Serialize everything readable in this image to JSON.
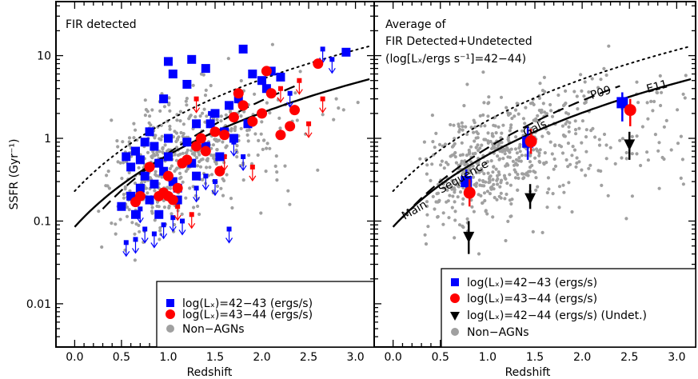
{
  "chart_data": [
    {
      "type": "scatter",
      "panel": "left",
      "annotations": [
        "FIR detected"
      ],
      "xlabel": "Redshift",
      "ylabel": "SSFR (Gyr⁻¹)",
      "xlim": [
        -0.2,
        3.2
      ],
      "ylim": [
        0.003,
        45
      ],
      "yscale": "log",
      "x_ticks": [
        "0.0",
        "0.5",
        "1.0",
        "1.5",
        "2.0",
        "2.5",
        "3.0"
      ],
      "y_ticks": [
        "0.01",
        "0.1",
        "1",
        "10"
      ],
      "legend": {
        "placement": "bottom-right",
        "entries": [
          {
            "label": "log(Lₓ)=42−43 (ergs/s)",
            "marker": "square",
            "color": "#0000ff"
          },
          {
            "label": "log(Lₓ)=43−44 (ergs/s)",
            "marker": "circle",
            "color": "#ff0000"
          },
          {
            "label": "Non−AGNs",
            "marker": "circle",
            "color": "#a0a0a0"
          }
        ]
      },
      "series": [
        {
          "name": "log(Lₓ)=42−43 (ergs/s)",
          "marker": "square",
          "color": "#0000ff",
          "points": [
            [
              0.55,
              0.6
            ],
            [
              0.6,
              0.45
            ],
            [
              0.65,
              0.7
            ],
            [
              0.7,
              0.55
            ],
            [
              0.75,
              0.9
            ],
            [
              0.8,
              1.2
            ],
            [
              0.85,
              0.8
            ],
            [
              0.9,
              0.5
            ],
            [
              0.95,
              0.4
            ],
            [
              1.0,
              0.6
            ],
            [
              1.05,
              0.3
            ],
            [
              1.1,
              0.25
            ],
            [
              0.5,
              0.15
            ],
            [
              0.7,
              0.25
            ],
            [
              0.9,
              0.12
            ],
            [
              1.0,
              1.0
            ],
            [
              1.2,
              0.9
            ],
            [
              1.25,
              0.5
            ],
            [
              1.3,
              1.5
            ],
            [
              1.4,
              0.8
            ],
            [
              1.45,
              1.5
            ],
            [
              1.5,
              2.0
            ],
            [
              1.6,
              1.2
            ],
            [
              1.65,
              2.5
            ],
            [
              1.7,
              1.0
            ],
            [
              1.75,
              3.0
            ],
            [
              1.85,
              1.5
            ],
            [
              1.9,
              6.0
            ],
            [
              2.0,
              5.0
            ],
            [
              2.05,
              4.0
            ],
            [
              2.1,
              6.5
            ],
            [
              2.2,
              5.5
            ],
            [
              1.8,
              12.0
            ],
            [
              2.9,
              11.0
            ],
            [
              1.0,
              8.5
            ],
            [
              1.05,
              6.0
            ],
            [
              1.2,
              4.5
            ],
            [
              0.95,
              3.0
            ],
            [
              1.25,
              9.0
            ],
            [
              1.4,
              7.0
            ],
            [
              0.8,
              0.18
            ],
            [
              1.1,
              0.18
            ],
            [
              0.6,
              0.2
            ],
            [
              0.75,
              0.35
            ],
            [
              1.55,
              0.6
            ],
            [
              1.3,
              0.35
            ],
            [
              0.65,
              0.12
            ],
            [
              0.85,
              0.28
            ]
          ]
        },
        {
          "name": "log(Lₓ)=43−44 (ergs/s)",
          "marker": "circle",
          "color": "#ff0000",
          "points": [
            [
              0.7,
              0.2
            ],
            [
              0.8,
              0.45
            ],
            [
              0.9,
              0.2
            ],
            [
              0.95,
              0.22
            ],
            [
              1.0,
              0.35
            ],
            [
              1.05,
              0.18
            ],
            [
              1.1,
              0.25
            ],
            [
              1.15,
              0.5
            ],
            [
              1.2,
              0.55
            ],
            [
              1.3,
              0.8
            ],
            [
              1.35,
              1.0
            ],
            [
              1.4,
              0.7
            ],
            [
              1.5,
              1.2
            ],
            [
              1.55,
              0.4
            ],
            [
              1.6,
              1.1
            ],
            [
              1.7,
              1.8
            ],
            [
              1.75,
              3.5
            ],
            [
              1.8,
              2.5
            ],
            [
              1.9,
              1.6
            ],
            [
              2.0,
              2.0
            ],
            [
              2.05,
              6.5
            ],
            [
              2.1,
              3.5
            ],
            [
              2.2,
              1.1
            ],
            [
              2.3,
              1.4
            ],
            [
              2.35,
              2.2
            ],
            [
              2.6,
              8.0
            ],
            [
              0.65,
              0.17
            ],
            [
              1.0,
              0.2
            ]
          ]
        },
        {
          "name": "Upper limits (FIR undetected)",
          "marker": "down-arrow",
          "points": [
            [
              0.55,
              0.055,
              "b"
            ],
            [
              0.65,
              0.06,
              "b"
            ],
            [
              0.75,
              0.08,
              "b"
            ],
            [
              0.85,
              0.07,
              "b"
            ],
            [
              0.95,
              0.09,
              "b"
            ],
            [
              1.05,
              0.11,
              "b"
            ],
            [
              1.15,
              0.1,
              "b"
            ],
            [
              0.7,
              0.14,
              "b"
            ],
            [
              1.3,
              0.25,
              "b"
            ],
            [
              1.4,
              0.35,
              "b"
            ],
            [
              1.5,
              0.3,
              "b"
            ],
            [
              1.65,
              0.08,
              "b"
            ],
            [
              1.7,
              0.9,
              "b"
            ],
            [
              1.45,
              2.0,
              "b"
            ],
            [
              1.8,
              0.6,
              "b"
            ],
            [
              2.3,
              3.5,
              "b"
            ],
            [
              2.65,
              12.0,
              "b"
            ],
            [
              2.75,
              9.0,
              "b"
            ],
            [
              1.1,
              0.15,
              "r"
            ],
            [
              1.25,
              0.12,
              "r"
            ],
            [
              1.6,
              0.6,
              "r"
            ],
            [
              1.9,
              0.45,
              "r"
            ],
            [
              2.2,
              4.0,
              "r"
            ],
            [
              2.5,
              1.5,
              "r"
            ],
            [
              2.65,
              3.0,
              "r"
            ],
            [
              2.4,
              5.0,
              "r"
            ],
            [
              1.3,
              3.0,
              "r"
            ]
          ]
        }
      ],
      "curves": [
        {
          "label": "",
          "style": "dotted",
          "x": [
            0.0,
            3.15
          ],
          "y": [
            0.23,
            13.0
          ]
        },
        {
          "label": "",
          "style": "dashed",
          "x": [
            0.3,
            2.4
          ],
          "y": [
            0.14,
            4.5
          ]
        },
        {
          "label": "",
          "style": "solid",
          "x": [
            0.0,
            3.15
          ],
          "y": [
            0.085,
            5.2
          ]
        }
      ]
    },
    {
      "type": "scatter",
      "panel": "right",
      "annotations": [
        "Average of",
        "FIR Detected+Undetected",
        "(log[Lₓ/ergs s⁻¹]=42−44)"
      ],
      "xlabel": "Redshift",
      "xlim": [
        -0.2,
        3.2
      ],
      "ylim": [
        0.003,
        45
      ],
      "yscale": "log",
      "x_ticks": [
        "0.0",
        "0.5",
        "1.0",
        "1.5",
        "2.0",
        "2.5",
        "3.0"
      ],
      "curve_labels": [
        "Main",
        "Sequence",
        "Gals.",
        "P09",
        "E11"
      ],
      "legend": {
        "placement": "bottom-right",
        "entries": [
          {
            "label": "log(Lₓ)=42−43 (ergs/s)",
            "marker": "square",
            "color": "#0000ff"
          },
          {
            "label": "log(Lₓ)=43−44 (ergs/s)",
            "marker": "circle",
            "color": "#ff0000"
          },
          {
            "label": "log(Lₓ)=42−44 (ergs/s) (Undet.)",
            "marker": "triangle-down",
            "color": "#000000"
          },
          {
            "label": "Non−AGNs",
            "marker": "circle",
            "color": "#a0a0a0"
          }
        ]
      },
      "series": [
        {
          "name": "log(Lₓ)=42−43 (ergs/s)",
          "marker": "square",
          "color": "#0000ff",
          "points": [
            [
              0.8,
              0.3,
              0.22,
              0.42
            ],
            [
              1.45,
              0.9,
              0.55,
              1.4
            ],
            [
              2.45,
              2.7,
              1.6,
              3.6
            ]
          ]
        },
        {
          "name": "log(Lₓ)=43−44 (ergs/s)",
          "marker": "circle",
          "color": "#ff0000",
          "points": [
            [
              0.8,
              0.22,
              0.15,
              0.32
            ],
            [
              1.45,
              0.92,
              0.65,
              1.3
            ],
            [
              2.5,
              2.2,
              1.4,
              3.0
            ]
          ]
        },
        {
          "name": "log(Lₓ)=42−44 (ergs/s) (Undet.)",
          "marker": "triangle-down",
          "color": "#000000",
          "points": [
            [
              0.8,
              0.065,
              0.04,
              0.1
            ],
            [
              1.45,
              0.19,
              0.14,
              0.28
            ],
            [
              2.5,
              0.85,
              0.55,
              1.2
            ]
          ]
        }
      ],
      "curves": [
        {
          "label": "",
          "style": "dotted",
          "x": [
            0.0,
            3.15
          ],
          "y": [
            0.23,
            13.0
          ]
        },
        {
          "label": "Main Sequence Gals.",
          "style": "dashed",
          "x": [
            0.1,
            2.4
          ],
          "y": [
            0.11,
            4.3
          ]
        },
        {
          "label": "E11",
          "style": "solid",
          "x": [
            0.0,
            3.15
          ],
          "y": [
            0.085,
            5.2
          ]
        }
      ]
    }
  ],
  "colors": {
    "blue": "#0000ff",
    "red": "#ff0000",
    "gray": "#a0a0a0",
    "black": "#000000"
  }
}
